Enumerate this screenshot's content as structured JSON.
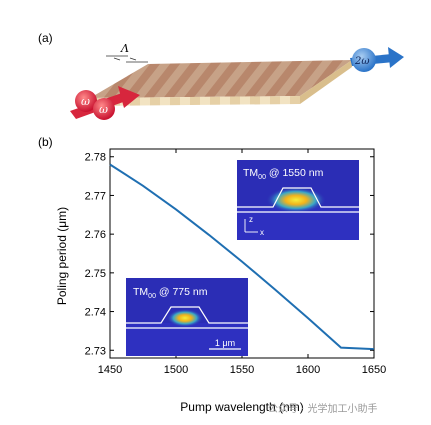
{
  "panel_a": {
    "label": "(a)",
    "period_symbol": "Λ",
    "input_label": "ω",
    "output_label": "2ω"
  },
  "panel_b_label": "(b)",
  "chart_data": {
    "type": "line",
    "title": "",
    "xlabel": "Pump wavelength (nm)",
    "ylabel": "Poling period (μm)",
    "xlim": [
      1450,
      1650
    ],
    "ylim": [
      2.728,
      2.782
    ],
    "xticks": [
      "1450",
      "1500",
      "1550",
      "1600",
      "1650"
    ],
    "yticks": [
      "2.73",
      "2.74",
      "2.75",
      "2.76",
      "2.77",
      "2.78"
    ],
    "grid": false,
    "line_color": "#1f6fb2",
    "series": [
      {
        "x": [
          1450,
          1475,
          1500,
          1525,
          1550,
          1575,
          1600,
          1625,
          1650
        ],
        "y": [
          2.778,
          2.7725,
          2.7664,
          2.7598,
          2.7529,
          2.7457,
          2.7383,
          2.7307,
          2.7303
        ]
      }
    ],
    "insets": [
      {
        "mode": "TM",
        "sub": "00",
        "label": " @ 1550 nm",
        "axes": [
          "z",
          "x"
        ]
      },
      {
        "mode": "TM",
        "sub": "00",
        "label": " @ 775 nm",
        "scalebar": "1 μm"
      }
    ]
  },
  "watermark": "公众号 · 光学加工小助手"
}
